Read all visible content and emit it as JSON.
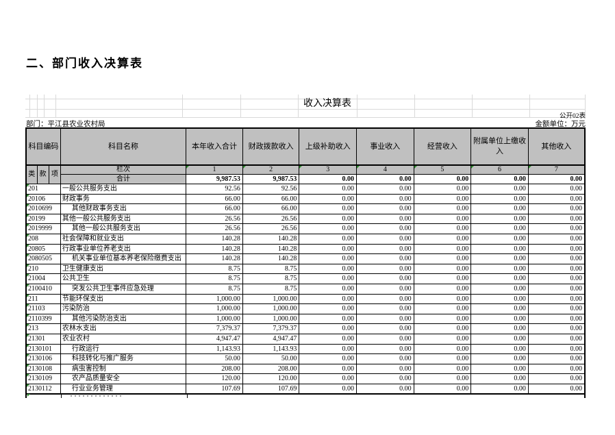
{
  "page": {
    "heading": "二、部门收入决算表",
    "sheet_title": "收入决算表",
    "table_code": "公开02表",
    "department": "部门：平江县农业农村局",
    "unit": "金额单位：万元"
  },
  "colors": {
    "header_bg": "#c0c0c0",
    "border": "#000000",
    "marker_green": "#2e8b2e"
  },
  "table": {
    "header": {
      "code": "科目编码",
      "code_sub": [
        "类",
        "款",
        "项"
      ],
      "name": "科目名称",
      "cols": [
        "本年收入合计",
        "财政拨款收入",
        "上级补助收入",
        "事业收入",
        "经营收入",
        "附属单位上缴收入",
        "其他收入"
      ]
    },
    "lanci_label": "栏次",
    "lanci_numbers": [
      "1",
      "2",
      "3",
      "4",
      "5",
      "6",
      "7"
    ],
    "total_label": "合计",
    "total_values": [
      "9,987.53",
      "9,987.53",
      "0.00",
      "0.00",
      "0.00",
      "0.00",
      "0.00"
    ],
    "rows": [
      {
        "code": "201",
        "name": "一般公共服务支出",
        "values": [
          "92.56",
          "92.56",
          "0.00",
          "0.00",
          "0.00",
          "0.00",
          "0.00"
        ]
      },
      {
        "code": "20106",
        "name": "财政事务",
        "values": [
          "66.00",
          "66.00",
          "0.00",
          "0.00",
          "0.00",
          "0.00",
          "0.00"
        ]
      },
      {
        "code": "2010699",
        "name": "其他财政事务支出",
        "values": [
          "66.00",
          "66.00",
          "0.00",
          "0.00",
          "0.00",
          "0.00",
          "0.00"
        ]
      },
      {
        "code": "20199",
        "name": "其他一般公共服务支出",
        "values": [
          "26.56",
          "26.56",
          "0.00",
          "0.00",
          "0.00",
          "0.00",
          "0.00"
        ]
      },
      {
        "code": "2019999",
        "name": "其他一般公共服务支出",
        "values": [
          "26.56",
          "26.56",
          "0.00",
          "0.00",
          "0.00",
          "0.00",
          "0.00"
        ]
      },
      {
        "code": "208",
        "name": "社会保障和就业支出",
        "values": [
          "140.28",
          "140.28",
          "0.00",
          "0.00",
          "0.00",
          "0.00",
          "0.00"
        ]
      },
      {
        "code": "20805",
        "name": "行政事业单位养老支出",
        "values": [
          "140.28",
          "140.28",
          "0.00",
          "0.00",
          "0.00",
          "0.00",
          "0.00"
        ]
      },
      {
        "code": "2080505",
        "name": "机关事业单位基本养老保险缴费支出",
        "values": [
          "140.28",
          "140.28",
          "0.00",
          "0.00",
          "0.00",
          "0.00",
          "0.00"
        ]
      },
      {
        "code": "210",
        "name": "卫生健康支出",
        "values": [
          "8.75",
          "8.75",
          "0.00",
          "0.00",
          "0.00",
          "0.00",
          "0.00"
        ]
      },
      {
        "code": "21004",
        "name": "公共卫生",
        "values": [
          "8.75",
          "8.75",
          "0.00",
          "0.00",
          "0.00",
          "0.00",
          "0.00"
        ]
      },
      {
        "code": "2100410",
        "name": "突发公共卫生事件应急处理",
        "values": [
          "8.75",
          "8.75",
          "0.00",
          "0.00",
          "0.00",
          "0.00",
          "0.00"
        ]
      },
      {
        "code": "211",
        "name": "节能环保支出",
        "values": [
          "1,000.00",
          "1,000.00",
          "0.00",
          "0.00",
          "0.00",
          "0.00",
          "0.00"
        ]
      },
      {
        "code": "21103",
        "name": "污染防治",
        "values": [
          "1,000.00",
          "1,000.00",
          "0.00",
          "0.00",
          "0.00",
          "0.00",
          "0.00"
        ]
      },
      {
        "code": "2110399",
        "name": "其他污染防治支出",
        "values": [
          "1,000.00",
          "1,000.00",
          "0.00",
          "0.00",
          "0.00",
          "0.00",
          "0.00"
        ]
      },
      {
        "code": "213",
        "name": "农林水支出",
        "values": [
          "7,379.37",
          "7,379.37",
          "0.00",
          "0.00",
          "0.00",
          "0.00",
          "0.00"
        ]
      },
      {
        "code": "21301",
        "name": "农业农村",
        "values": [
          "4,947.47",
          "4,947.47",
          "0.00",
          "0.00",
          "0.00",
          "0.00",
          "0.00"
        ]
      },
      {
        "code": "2130101",
        "name": "行政运行",
        "values": [
          "1,143.93",
          "1,143.93",
          "0.00",
          "0.00",
          "0.00",
          "0.00",
          "0.00"
        ]
      },
      {
        "code": "2130106",
        "name": "科技转化与推广服务",
        "values": [
          "50.00",
          "50.00",
          "0.00",
          "0.00",
          "0.00",
          "0.00",
          "0.00"
        ]
      },
      {
        "code": "2130108",
        "name": "病虫害控制",
        "values": [
          "208.00",
          "208.00",
          "0.00",
          "0.00",
          "0.00",
          "0.00",
          "0.00"
        ]
      },
      {
        "code": "2130109",
        "name": "农产品质量安全",
        "values": [
          "120.00",
          "120.00",
          "0.00",
          "0.00",
          "0.00",
          "0.00",
          "0.00"
        ]
      },
      {
        "code": "2130112",
        "name": "行业业务管理",
        "values": [
          "107.69",
          "107.69",
          "0.00",
          "0.00",
          "0.00",
          "0.00",
          "0.00"
        ]
      }
    ]
  }
}
